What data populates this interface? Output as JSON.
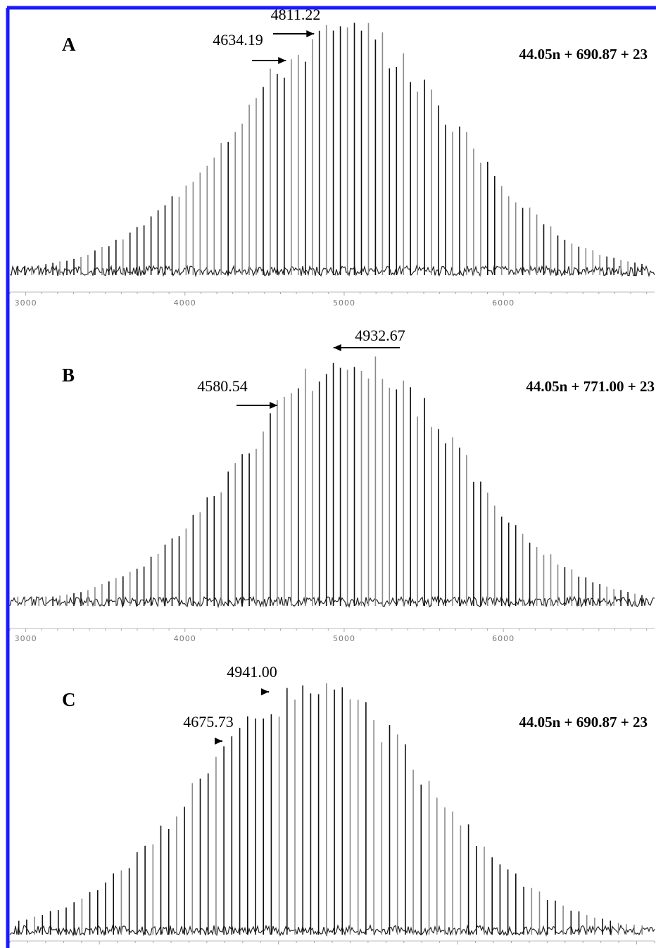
{
  "frame_color": "#1a1aff",
  "chart_data": [
    {
      "type": "bar",
      "panel": "A",
      "formula": "44.05n + 690.87 + 23",
      "x_ticks": [
        3000,
        4000,
        5000,
        6000
      ],
      "xlim": [
        2900,
        6950
      ],
      "spacing": 44.05,
      "peak_start": 2950,
      "peak_end": 6900,
      "envelope": {
        "center": 5000,
        "sigma": 700,
        "ymax": 100
      },
      "annotations": [
        {
          "text": "4811.22",
          "x": 4811.22,
          "direction": "right"
        },
        {
          "text": "4634.19",
          "x": 4634.19,
          "direction": "right"
        }
      ]
    },
    {
      "type": "bar",
      "panel": "B",
      "formula": "44.05n + 771.00 + 23",
      "x_ticks": [
        3000,
        4000,
        5000,
        6000
      ],
      "xlim": [
        2900,
        6950
      ],
      "spacing": 44.05,
      "peak_start": 2950,
      "peak_end": 6900,
      "envelope": {
        "center": 5050,
        "sigma": 680,
        "ymax": 100
      },
      "annotations": [
        {
          "text": "4932.67",
          "x": 4932.67,
          "direction": "left"
        },
        {
          "text": "4580.54",
          "x": 4580.54,
          "direction": "right"
        }
      ]
    },
    {
      "type": "bar",
      "panel": "C",
      "formula": "44.05n + 690.87 + 23",
      "x_ticks": [],
      "xlim": [
        3500,
        7100
      ],
      "spacing": 44.05,
      "peak_start": 3550,
      "peak_end": 7050,
      "envelope": {
        "center": 5200,
        "sigma": 650,
        "ymax": 100
      },
      "annotations": [
        {
          "text": "4941.00",
          "x": 4941.0,
          "direction": "right"
        },
        {
          "text": "4675.73",
          "x": 4675.73,
          "direction": "right"
        }
      ]
    }
  ]
}
